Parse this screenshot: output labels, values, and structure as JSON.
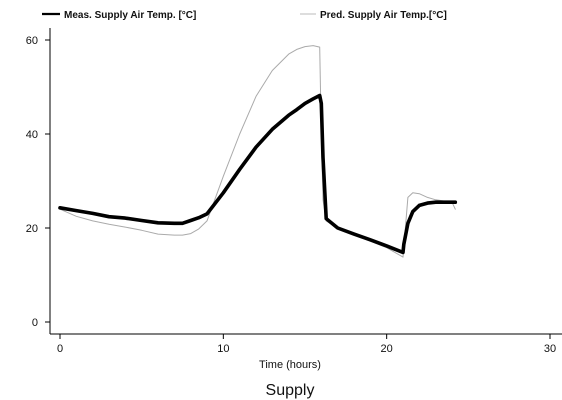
{
  "chart_data": {
    "type": "line",
    "title": "",
    "caption": "Supply",
    "xlabel": "Time (hours)",
    "ylabel": "",
    "xlim": [
      0,
      30
    ],
    "ylim": [
      0,
      60
    ],
    "x_ticks": [
      0,
      10,
      20,
      30
    ],
    "y_ticks": [
      0,
      20,
      40,
      60
    ],
    "grid": false,
    "legend_position": "top",
    "series": [
      {
        "name": "Meas. Supply Air Temp. [°C]",
        "color": "#000000",
        "style": "thick",
        "x": [
          0,
          1,
          2,
          3,
          4,
          5,
          6,
          7,
          7.5,
          8,
          8.5,
          9,
          10,
          11,
          12,
          13,
          14,
          14.5,
          15,
          15.5,
          15.9,
          16,
          16.1,
          16.3,
          17,
          18,
          19,
          20,
          21,
          21.05,
          21.3,
          21.6,
          22,
          22.5,
          23,
          24,
          24.2
        ],
        "y": [
          24.3,
          23.7,
          23.1,
          22.4,
          22.1,
          21.6,
          21.1,
          21.0,
          21.0,
          21.6,
          22.2,
          23.0,
          27.5,
          32.5,
          37.2,
          41.0,
          44.0,
          45.2,
          46.5,
          47.5,
          48.2,
          46.5,
          35.0,
          22.0,
          20.0,
          18.7,
          17.5,
          16.2,
          14.8,
          16.5,
          21.0,
          23.5,
          24.8,
          25.3,
          25.5,
          25.5,
          25.5
        ]
      },
      {
        "name": "Pred. Supply Air Temp.[°C]",
        "color": "#999999",
        "style": "thin",
        "x": [
          0,
          1,
          2,
          3,
          4,
          5,
          6,
          7,
          7.5,
          8,
          8.5,
          9,
          10,
          11,
          12,
          13,
          14,
          14.5,
          15,
          15.5,
          15.9,
          16,
          16.1,
          16.3,
          17,
          18,
          19,
          20,
          21,
          21.05,
          21.3,
          21.6,
          22,
          22.5,
          23,
          24,
          24.2
        ],
        "y": [
          24.0,
          22.5,
          21.5,
          20.8,
          20.2,
          19.5,
          18.7,
          18.5,
          18.5,
          18.8,
          19.8,
          21.5,
          31.0,
          40.0,
          48.0,
          53.5,
          57.0,
          58.0,
          58.6,
          58.8,
          58.5,
          40.0,
          26.0,
          21.5,
          20.0,
          18.6,
          17.2,
          15.8,
          13.8,
          16.0,
          26.5,
          27.5,
          27.3,
          26.5,
          26.0,
          25.5,
          24.0
        ]
      }
    ]
  }
}
